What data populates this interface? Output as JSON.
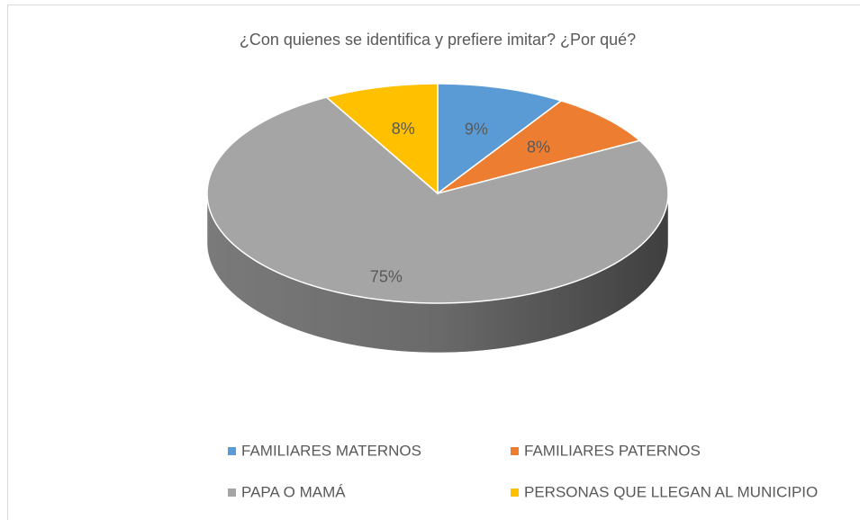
{
  "chart_data": {
    "type": "pie",
    "title": "¿Con quienes se identifica y prefiere imitar? ¿Por qué?",
    "categories": [
      "FAMILIARES MATERNOS",
      "FAMILIARES PATERNOS",
      "PAPA O MAMÁ",
      "PERSONAS QUE LLEGAN AL MUNICIPIO"
    ],
    "values": [
      9,
      8,
      75,
      8
    ],
    "value_labels": [
      "9%",
      "8%",
      "75%",
      "8%"
    ],
    "colors": [
      "#5b9bd5",
      "#ed7d31",
      "#a5a5a5",
      "#ffc000"
    ],
    "legend": "bottom"
  }
}
